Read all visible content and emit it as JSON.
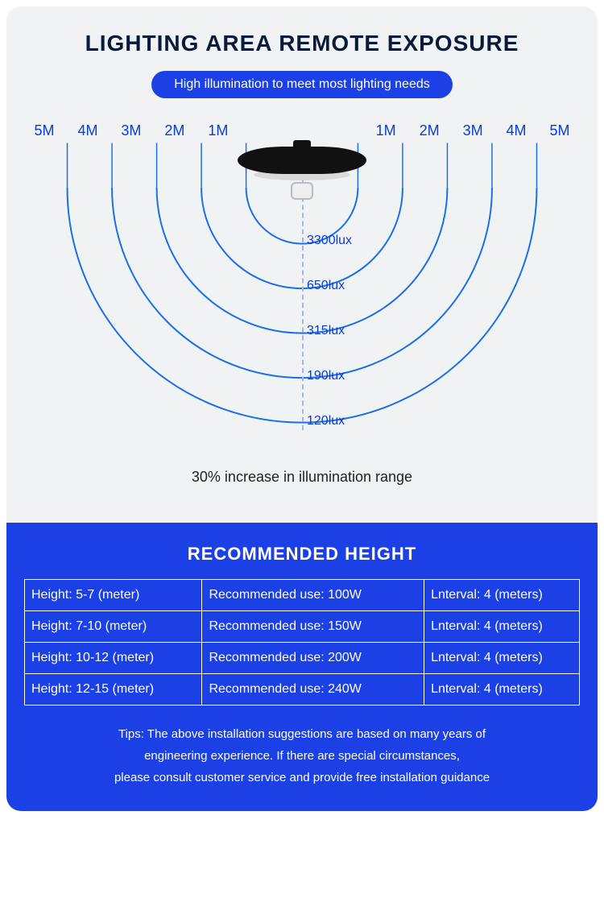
{
  "title": "LIGHTING AREA REMOTE EXPOSURE",
  "subtitle": "High illumination to meet most lighting needs",
  "diagram": {
    "distance_labels_left": [
      "5M",
      "4M",
      "3M",
      "2M",
      "1M"
    ],
    "distance_labels_right": [
      "1M",
      "2M",
      "3M",
      "4M",
      "5M"
    ],
    "arc_color": "#1a6fe6",
    "arc_stroke_width": 2,
    "arc_radii": [
      70,
      126,
      182,
      238,
      294
    ],
    "centerline_color": "#9fb7f0",
    "background_color": "#f1f2f3",
    "lux_values": [
      "3300lux",
      "650lux",
      "315lux",
      "190lux",
      "120lux"
    ],
    "lux_y": [
      138,
      194,
      250,
      306,
      362
    ],
    "caption": "30% increase in illumination range"
  },
  "recommended": {
    "heading": "RECOMMENDED HEIGHT",
    "rows": [
      {
        "height": "Height: 5-7 (meter)",
        "use": "Recommended use: 100W",
        "interval": "Lnterval: 4 (meters)"
      },
      {
        "height": "Height: 7-10 (meter)",
        "use": "Recommended use: 150W",
        "interval": "Lnterval: 4 (meters)"
      },
      {
        "height": "Height: 10-12 (meter)",
        "use": "Recommended use: 200W",
        "interval": "Lnterval: 4 (meters)"
      },
      {
        "height": "Height: 12-15 (meter)",
        "use": "Recommended use: 240W",
        "interval": "Lnterval: 4 (meters)"
      }
    ],
    "tips_line1": "Tips: The above installation suggestions are based on many years of",
    "tips_line2": "engineering experience. If there are special circumstances,",
    "tips_line3": "please consult customer service and provide free installation guidance"
  },
  "colors": {
    "primary": "#1a40e6",
    "text_dark": "#0a1a3a",
    "label_blue": "#0a3dd6"
  }
}
